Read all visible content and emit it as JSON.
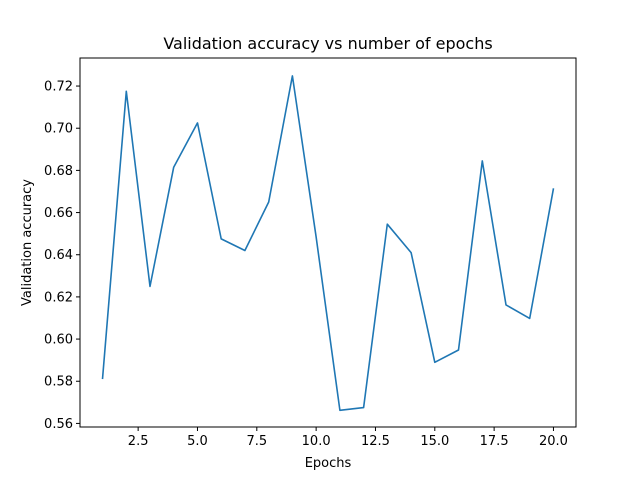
{
  "chart_data": {
    "type": "line",
    "title": "Validation accuracy vs number of epochs",
    "xlabel": "Epochs",
    "ylabel": "Validation accuracy",
    "xlim": [
      0.05,
      20.95
    ],
    "ylim": [
      0.5583,
      0.7333
    ],
    "xticks": [
      "2.5",
      "5.0",
      "7.5",
      "10.0",
      "12.5",
      "15.0",
      "17.5",
      "20.0"
    ],
    "xtick_values": [
      2.5,
      5.0,
      7.5,
      10.0,
      12.5,
      15.0,
      17.5,
      20.0
    ],
    "yticks": [
      "0.56",
      "0.58",
      "0.60",
      "0.62",
      "0.64",
      "0.66",
      "0.68",
      "0.70",
      "0.72"
    ],
    "ytick_values": [
      0.56,
      0.58,
      0.6,
      0.62,
      0.64,
      0.66,
      0.68,
      0.7,
      0.72
    ],
    "grid": false,
    "series": [
      {
        "color": "#1f77b4",
        "x": [
          1,
          2,
          3,
          4,
          5,
          6,
          7,
          8,
          9,
          10,
          11,
          12,
          13,
          14,
          15,
          16,
          17,
          18,
          19,
          20
        ],
        "values": [
          0.581,
          0.7175,
          0.625,
          0.6815,
          0.7025,
          0.6475,
          0.642,
          0.665,
          0.7248,
          0.6485,
          0.5662,
          0.5675,
          0.6545,
          0.641,
          0.589,
          0.5948,
          0.6845,
          0.6162,
          0.6098,
          0.6715
        ]
      }
    ]
  }
}
